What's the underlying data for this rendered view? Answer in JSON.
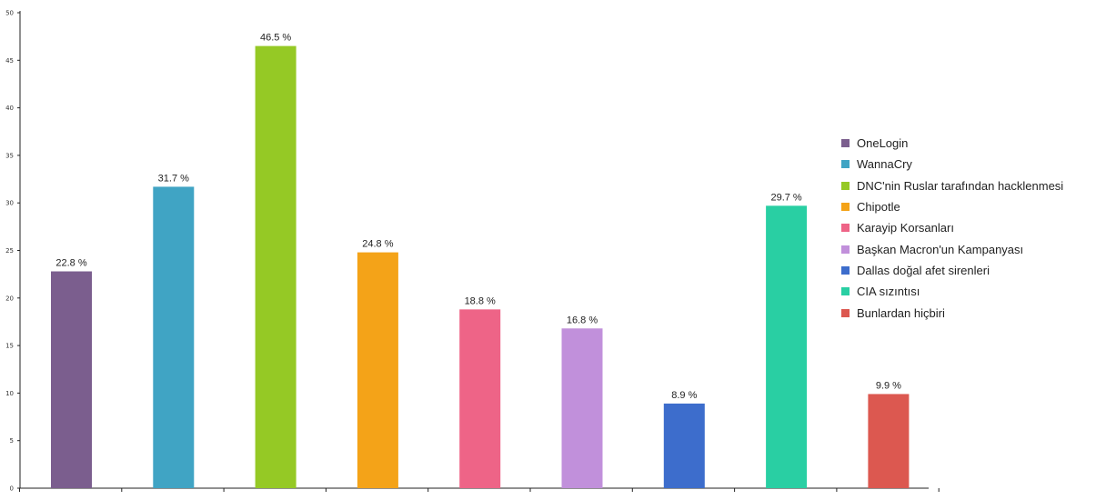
{
  "chart_data": {
    "type": "bar",
    "title": "",
    "xlabel": "",
    "ylabel": "",
    "ylim": [
      0,
      50
    ],
    "yticks": [
      0,
      5,
      10,
      15,
      20,
      25,
      30,
      35,
      40,
      45,
      50
    ],
    "grid": false,
    "legend_position": "right",
    "categories": [
      "OneLogin",
      "WannaCry",
      "DNC'nin Ruslar tarafından hacklenmesi",
      "Chipotle",
      "Karayip Korsanları",
      "Başkan Macron'un Kampanyası",
      "Dallas doğal afet sirenleri",
      "CIA sızıntısı",
      "Bunlardan hiçbiri"
    ],
    "values": [
      22.8,
      31.7,
      46.5,
      24.8,
      18.8,
      16.8,
      8.9,
      29.7,
      9.9
    ],
    "value_labels": [
      "22.8 %",
      "31.7 %",
      "46.5 %",
      "24.8 %",
      "18.8 %",
      "16.8 %",
      "8.9 %",
      "29.7 %",
      "9.9 %"
    ],
    "colors": [
      "#7b5e8e",
      "#40a4c4",
      "#95c925",
      "#f4a318",
      "#ee6487",
      "#c190db",
      "#3d6dcc",
      "#29cfa3",
      "#dc5850"
    ]
  }
}
